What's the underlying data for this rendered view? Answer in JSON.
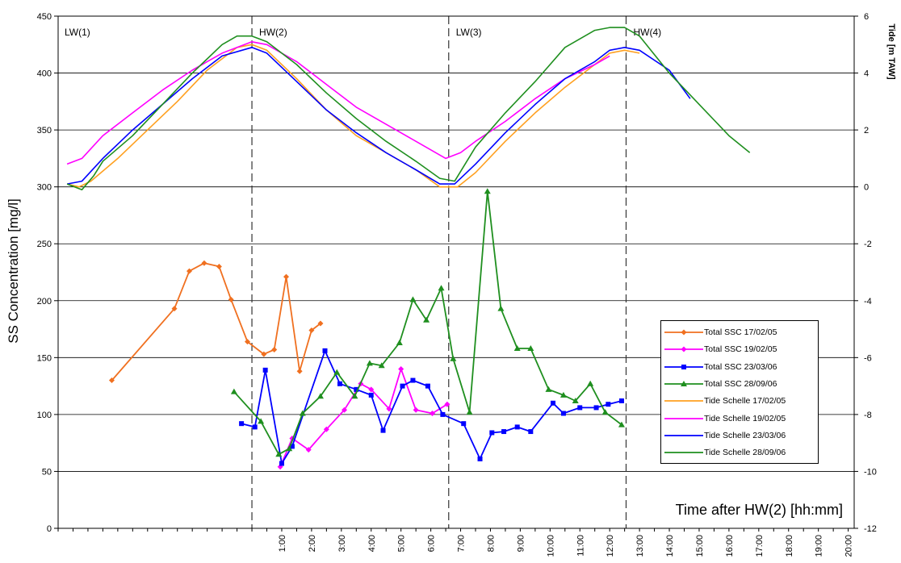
{
  "chart_data": {
    "type": "line",
    "ylabel": "SS Concentration [mg/l]",
    "y2label": "Tide [m TAW]",
    "xlabel": "Time after HW(2) [hh:mm]",
    "ylim": [
      0,
      450
    ],
    "y2lim": [
      -12,
      6
    ],
    "xlim": [
      -6.5,
      20.2
    ],
    "yticks": [
      "0",
      "50",
      "100",
      "150",
      "200",
      "250",
      "300",
      "350",
      "400",
      "450"
    ],
    "y2ticks": [
      "-12",
      "-10",
      "-8",
      "-6",
      "-4",
      "-2",
      "0",
      "2",
      "4",
      "6"
    ],
    "xticks": [
      {
        "v": 1,
        "label": "1:00"
      },
      {
        "v": 2,
        "label": "2:00"
      },
      {
        "v": 3,
        "label": "3:00"
      },
      {
        "v": 4,
        "label": "4:00"
      },
      {
        "v": 5,
        "label": "5:00"
      },
      {
        "v": 6,
        "label": "6:00"
      },
      {
        "v": 7,
        "label": "7:00"
      },
      {
        "v": 8,
        "label": "8:00"
      },
      {
        "v": 9,
        "label": "9:00"
      },
      {
        "v": 10,
        "label": "10:00"
      },
      {
        "v": 11,
        "label": "11:00"
      },
      {
        "v": 12,
        "label": "12:00"
      },
      {
        "v": 13,
        "label": "13:00"
      },
      {
        "v": 14,
        "label": "14:00"
      },
      {
        "v": 15,
        "label": "15:00"
      },
      {
        "v": 16,
        "label": "16:00"
      },
      {
        "v": 17,
        "label": "17:00"
      },
      {
        "v": 18,
        "label": "18:00"
      },
      {
        "v": 19,
        "label": "19:00"
      },
      {
        "v": 20,
        "label": "20:00"
      }
    ],
    "vlines": [
      {
        "x": 0,
        "label": "HW(2)"
      },
      {
        "x": 6.6,
        "label": "LW(3)"
      },
      {
        "x": 12.55,
        "label": "HW(4)"
      }
    ],
    "corner_label": "LW(1)",
    "grid": true,
    "legend_position": "lower-right",
    "series": [
      {
        "name": "Total SSC 17/02/05",
        "axis": "left",
        "color": "#F07020",
        "marker": "diamond",
        "x": [
          -4.7,
          -2.6,
          -2.1,
          -1.6,
          -1.1,
          -0.7,
          -0.15,
          0.4,
          0.75,
          1.15,
          1.6,
          2.0,
          2.3
        ],
        "y": [
          130,
          193,
          226,
          233,
          230,
          201,
          164,
          153,
          157,
          221,
          138,
          174,
          180
        ]
      },
      {
        "name": "Total SSC 19/02/05",
        "axis": "left",
        "color": "#FF00FF",
        "marker": "diamond",
        "x": [
          0.95,
          1.35,
          1.9,
          2.5,
          3.1,
          3.65,
          4.0,
          4.6,
          5.0,
          5.5,
          6.05,
          6.55
        ],
        "y": [
          54,
          79,
          69,
          87,
          104,
          127,
          122,
          105,
          140,
          104,
          101,
          109
        ]
      },
      {
        "name": "Total SSC 23/03/06",
        "axis": "left",
        "color": "#0000FF",
        "marker": "square",
        "x": [
          -0.35,
          0.1,
          0.45,
          1.0,
          1.35,
          2.45,
          2.95,
          3.5,
          4.0,
          4.4,
          5.05,
          5.4,
          5.9,
          6.4,
          7.1,
          7.65,
          8.05,
          8.45,
          8.9,
          9.35,
          10.1,
          10.45,
          11.0,
          11.55,
          11.95,
          12.4
        ],
        "y": [
          92,
          89,
          139,
          57,
          72,
          156,
          127,
          122,
          117,
          86,
          125,
          130,
          125,
          100,
          92,
          61,
          84,
          85,
          89,
          85,
          110,
          101,
          106,
          106,
          109,
          112
        ]
      },
      {
        "name": "Total SSC 28/09/06",
        "axis": "left",
        "color": "#1F8F1F",
        "marker": "triangle",
        "x": [
          -0.6,
          0.3,
          0.9,
          1.25,
          1.7,
          2.3,
          2.85,
          3.45,
          3.95,
          4.35,
          4.95,
          5.4,
          5.85,
          6.35,
          6.75,
          7.3,
          7.9,
          8.35,
          8.9,
          9.35,
          9.95,
          10.45,
          10.85,
          11.35,
          11.85,
          12.4
        ],
        "y": [
          120,
          94,
          65,
          70,
          101,
          116,
          137,
          116,
          145,
          143,
          163,
          201,
          183,
          211,
          149,
          102,
          296,
          193,
          158,
          158,
          122,
          117,
          112,
          127,
          102,
          91
        ]
      },
      {
        "name": "Tide Schelle 17/02/05",
        "axis": "right",
        "color": "#FFA020",
        "marker": "none",
        "x": [
          -6.2,
          -5.8,
          -5.4,
          -4.5,
          -3.5,
          -2.5,
          -1.5,
          -0.5,
          0.0,
          0.5,
          1.5,
          2.5,
          3.5,
          4.5,
          5.5,
          6.3,
          6.9,
          7.5,
          8.5,
          9.5,
          10.5,
          11.5,
          12.0,
          12.5,
          13.0
        ],
        "y": [
          0.1,
          0.0,
          0.2,
          1.0,
          2.0,
          3.0,
          4.1,
          4.9,
          5.0,
          4.8,
          3.8,
          2.7,
          1.8,
          1.2,
          0.6,
          0.0,
          0.0,
          0.5,
          1.6,
          2.6,
          3.5,
          4.3,
          4.7,
          4.8,
          4.7
        ]
      },
      {
        "name": "Tide Schelle 19/02/05",
        "axis": "right",
        "color": "#FF00FF",
        "marker": "none",
        "x": [
          -6.2,
          -5.7,
          -5.0,
          -4.0,
          -3.0,
          -2.0,
          -1.0,
          0.0,
          0.5,
          1.5,
          2.5,
          3.5,
          4.5,
          5.5,
          6.5,
          7.0,
          7.5,
          8.5,
          9.5,
          10.5,
          11.5,
          12.0
        ],
        "y": [
          0.8,
          1.0,
          1.8,
          2.6,
          3.4,
          4.1,
          4.7,
          5.1,
          5.0,
          4.4,
          3.6,
          2.8,
          2.2,
          1.6,
          1.0,
          1.2,
          1.6,
          2.3,
          3.1,
          3.8,
          4.3,
          4.6
        ]
      },
      {
        "name": "Tide Schelle 23/03/06",
        "axis": "right",
        "color": "#0000FF",
        "marker": "none",
        "x": [
          -6.2,
          -5.7,
          -5.0,
          -4.0,
          -3.0,
          -2.0,
          -1.0,
          0.0,
          0.5,
          1.5,
          2.5,
          3.5,
          4.5,
          5.5,
          6.3,
          6.8,
          7.5,
          8.5,
          9.5,
          10.5,
          11.5,
          12.0,
          12.5,
          13.0,
          14.0,
          14.7
        ],
        "y": [
          0.1,
          0.2,
          1.0,
          2.0,
          2.9,
          3.8,
          4.6,
          4.9,
          4.7,
          3.7,
          2.7,
          1.9,
          1.2,
          0.6,
          0.1,
          0.1,
          0.8,
          1.9,
          2.9,
          3.8,
          4.4,
          4.8,
          4.9,
          4.8,
          4.1,
          3.1
        ]
      },
      {
        "name": "Tide Schelle 28/09/06",
        "axis": "right",
        "color": "#1F8F1F",
        "marker": "none",
        "x": [
          -6.2,
          -5.7,
          -5.3,
          -5.0,
          -4.0,
          -3.0,
          -2.0,
          -1.0,
          -0.5,
          0.0,
          0.5,
          1.5,
          2.5,
          3.5,
          4.5,
          5.5,
          6.3,
          6.8,
          7.5,
          8.5,
          9.5,
          10.5,
          11.5,
          12.0,
          12.5,
          13.0,
          14.0,
          15.0,
          16.0,
          16.7
        ],
        "y": [
          0.1,
          -0.1,
          0.4,
          0.9,
          1.8,
          2.9,
          4.0,
          5.0,
          5.3,
          5.3,
          5.1,
          4.3,
          3.3,
          2.4,
          1.6,
          0.9,
          0.3,
          0.2,
          1.4,
          2.6,
          3.7,
          4.9,
          5.5,
          5.6,
          5.6,
          5.3,
          4.0,
          2.9,
          1.8,
          1.2
        ]
      }
    ]
  }
}
